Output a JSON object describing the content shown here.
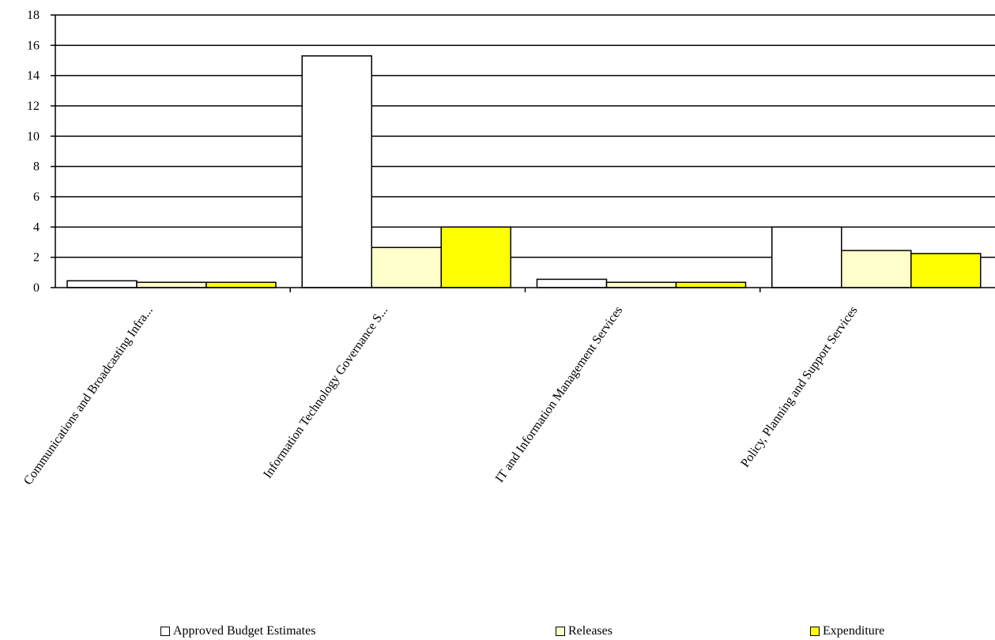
{
  "chart_data": {
    "type": "bar",
    "title": "",
    "xlabel": "",
    "ylabel": "",
    "ylim": [
      0,
      18
    ],
    "yticks": [
      0,
      2,
      4,
      6,
      8,
      10,
      12,
      14,
      16,
      18
    ],
    "grid": true,
    "legend_position": "bottom",
    "categories": [
      "Communications and Broadcasting Infra...",
      "Information Technology Governance S...",
      "IT and Information Management Services",
      "Policy, Planning and Support Services"
    ],
    "series": [
      {
        "name": "Approved Budget Estimates",
        "color": "#ffffff",
        "values": [
          0.45,
          15.3,
          0.55,
          4.0
        ]
      },
      {
        "name": "Releases",
        "color": "#ffffcc",
        "values": [
          0.35,
          2.65,
          0.35,
          2.45
        ]
      },
      {
        "name": "Expenditure",
        "color": "#ffff00",
        "values": [
          0.35,
          4.0,
          0.35,
          2.25
        ]
      }
    ]
  }
}
